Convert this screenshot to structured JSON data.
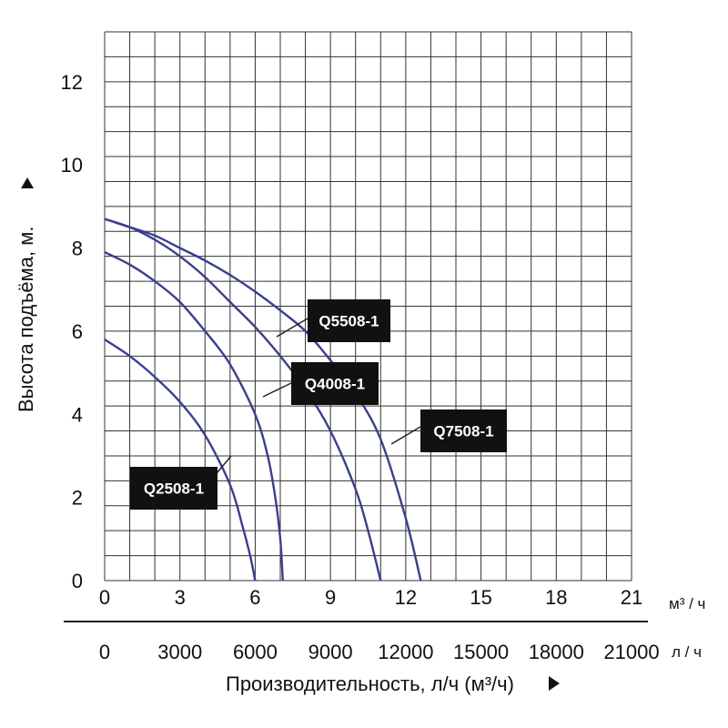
{
  "chart_data": {
    "type": "line",
    "ylabel": "Высота подъёма, м.",
    "y_ticks": [
      "0",
      "2",
      "4",
      "6",
      "8",
      "10",
      "12"
    ],
    "ylim": [
      0,
      13.2
    ],
    "x_axis_m3h": {
      "ticks": [
        "0",
        "3",
        "6",
        "9",
        "12",
        "15",
        "18",
        "21"
      ],
      "unit": "м³ / ч",
      "range": [
        0,
        21
      ]
    },
    "x_axis_lh": {
      "ticks": [
        "0",
        "3000",
        "6000",
        "9000",
        "12000",
        "15000",
        "18000",
        "21000"
      ],
      "unit": "л / ч",
      "range": [
        0,
        21000
      ]
    },
    "xlabel": "Производительность, л/ч (м³/ч)",
    "grid": true,
    "colors": {
      "curve": "#3a3f8f",
      "label_bg": "#111111",
      "grid": "#333333"
    },
    "series": [
      {
        "name": "Q2508-1",
        "x": [
          0,
          1,
          2,
          3,
          4,
          5,
          5.5,
          5.8,
          6.0
        ],
        "y": [
          5.8,
          5.4,
          4.9,
          4.3,
          3.5,
          2.3,
          1.3,
          0.6,
          0
        ]
      },
      {
        "name": "Q4008-1",
        "x": [
          0,
          1,
          2,
          3,
          4,
          5,
          6,
          6.5,
          6.8,
          7.0,
          7.1
        ],
        "y": [
          7.9,
          7.6,
          7.2,
          6.7,
          6.0,
          5.2,
          4.0,
          3.0,
          2.0,
          1.0,
          0
        ]
      },
      {
        "name": "Q5508-1",
        "x": [
          0,
          1,
          2,
          3,
          4,
          5,
          6,
          7,
          8,
          9,
          10,
          10.5,
          11.0
        ],
        "y": [
          8.7,
          8.5,
          8.2,
          7.8,
          7.3,
          6.7,
          6.1,
          5.4,
          4.6,
          3.6,
          2.2,
          1.2,
          0
        ]
      },
      {
        "name": "Q7508-1",
        "x": [
          0,
          1,
          2,
          3,
          4,
          5,
          6,
          7,
          8,
          9,
          10,
          11,
          12,
          12.6
        ],
        "y": [
          8.7,
          8.5,
          8.3,
          8.0,
          7.7,
          7.35,
          6.95,
          6.5,
          6.0,
          5.3,
          4.5,
          3.4,
          1.5,
          0
        ]
      }
    ],
    "labels": [
      "Q5508-1",
      "Q4008-1",
      "Q7508-1",
      "Q2508-1"
    ]
  }
}
